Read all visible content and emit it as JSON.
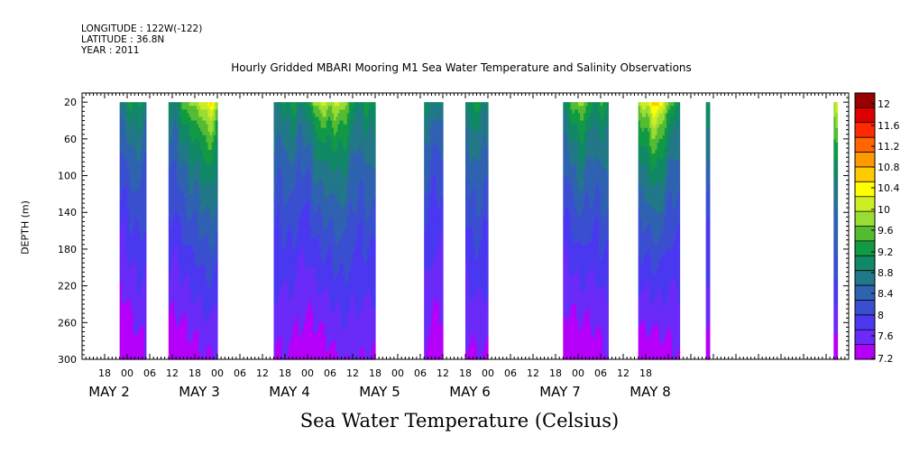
{
  "header": {
    "longitude": "LONGITUDE : 122W(-122)",
    "latitude": "LATITUDE : 36.8N",
    "year": "YEAR : 2011"
  },
  "chart_data": {
    "type": "heatmap",
    "title": "Hourly Gridded MBARI Mooring M1 Sea Water Temperature and Salinity Observations",
    "xlabel": "Sea Water Temperature (Celsius)",
    "ylabel": "DEPTH (m)",
    "y_ticks": [
      20,
      60,
      100,
      140,
      180,
      220,
      260,
      300
    ],
    "ylim": [
      300,
      10
    ],
    "x_range_hours": [
      -12,
      192
    ],
    "x_tick_labels": [
      "18",
      "00",
      "06",
      "12",
      "18",
      "00",
      "06",
      "12",
      "18",
      "00",
      "06",
      "12",
      "18",
      "00",
      "06",
      "12",
      "18",
      "00",
      "06",
      "12",
      "18",
      "00",
      "06",
      "12",
      "18"
    ],
    "date_labels": [
      {
        "label": "MAY  2",
        "hour": 0
      },
      {
        "label": "MAY  3",
        "hour": 24
      },
      {
        "label": "MAY  4",
        "hour": 48
      },
      {
        "label": "MAY  5",
        "hour": 72
      },
      {
        "label": "MAY  6",
        "hour": 96
      },
      {
        "label": "MAY  7",
        "hour": 120
      },
      {
        "label": "MAY  8",
        "hour": 144
      }
    ],
    "colorbar_levels": [
      "12",
      "11.6",
      "11.2",
      "10.8",
      "10.4",
      "10",
      "9.6",
      "9.2",
      "8.8",
      "8.4",
      "8",
      "7.6",
      "7.2"
    ],
    "colorbar_colors": [
      "#990000",
      "#dd0000",
      "#ff2a00",
      "#ff6600",
      "#ff9900",
      "#ffcc00",
      "#ffff00",
      "#ccee22",
      "#99dd33",
      "#55bb33",
      "#119944",
      "#118866",
      "#227788",
      "#2f62b0",
      "#3a4fd0",
      "#4a38f0",
      "#6a2af8",
      "#b400f8"
    ],
    "observation_segments_hours": [
      [
        -2,
        5
      ],
      [
        11,
        24
      ],
      [
        39,
        66
      ],
      [
        79,
        84
      ],
      [
        90,
        96
      ],
      [
        116,
        128
      ],
      [
        136,
        147
      ],
      [
        154,
        155
      ],
      [
        188,
        189
      ]
    ],
    "surface_temperature_peaks": [
      {
        "hour": 21,
        "value": 10.4
      },
      {
        "hour": 54,
        "value": 10.2
      },
      {
        "hour": 120,
        "value": 9.6
      },
      {
        "hour": 140,
        "value": 10.6
      },
      {
        "hour": 188,
        "value": 10.0
      }
    ],
    "temperature_range": [
      7.2,
      12
    ],
    "grid": false,
    "legend": "right"
  }
}
